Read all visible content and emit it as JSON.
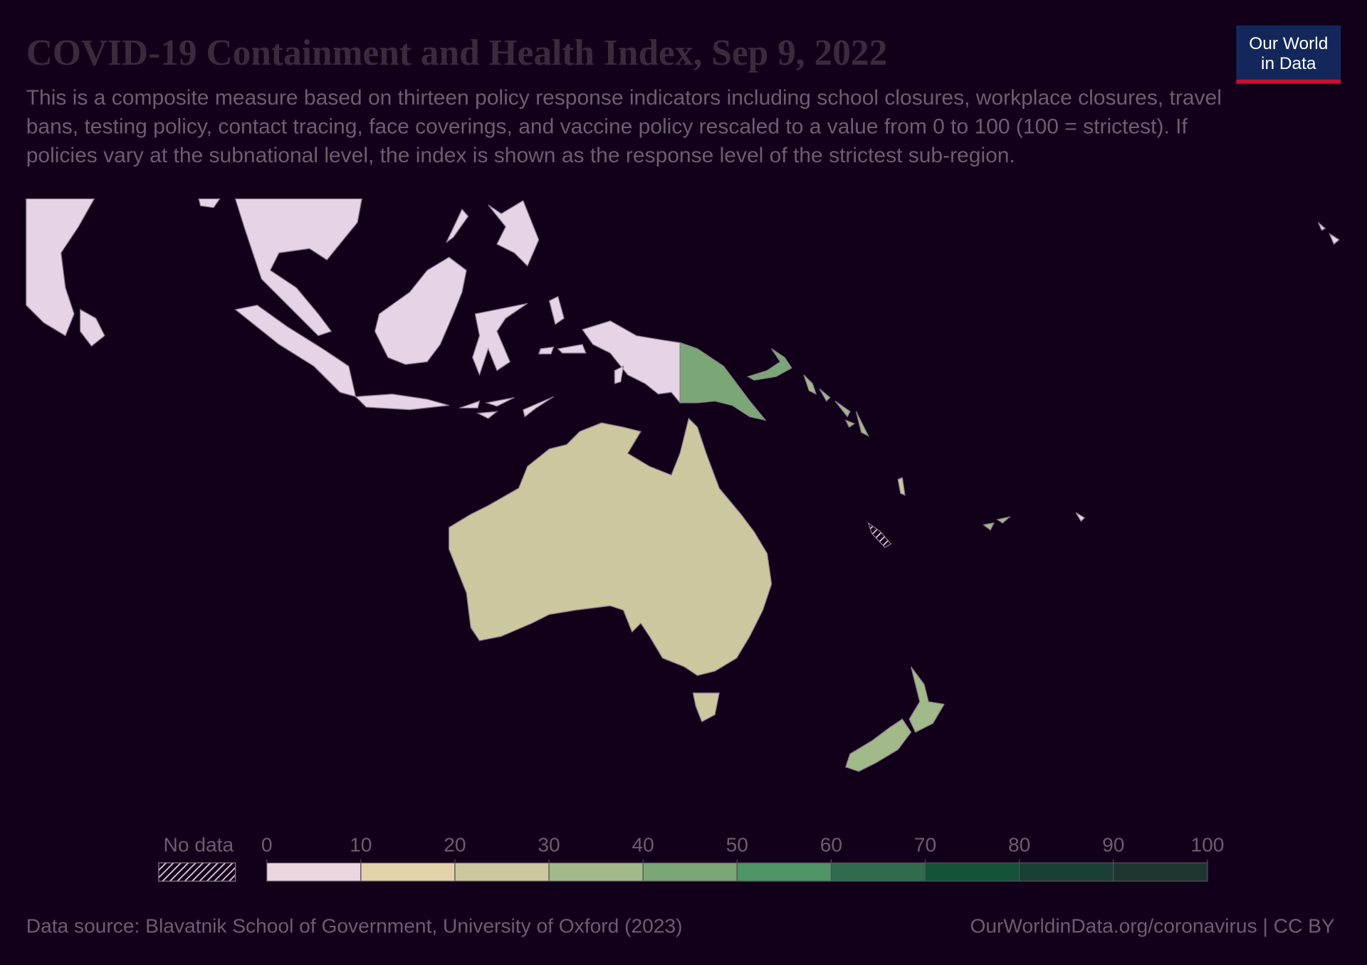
{
  "header": {
    "title": "COVID-19 Containment and Health Index, Sep 9, 2022",
    "subtitle": "This is a composite measure based on thirteen policy response indicators including school closures, workplace closures, travel bans, testing policy, contact tracing, face coverings, and vaccine policy rescaled to a value from 0 to 100 (100 = strictest). If policies vary at the subnational level, the index is shown as the response level of the strictest sub-region.",
    "logo": [
      "Our World",
      "in Data"
    ]
  },
  "legend": {
    "no_data": "No data",
    "ticks": [
      0,
      10,
      20,
      30,
      40,
      50,
      60,
      70,
      80,
      90,
      100
    ],
    "colors": [
      "#ead6df",
      "#e3d3ab",
      "#cbc89f",
      "#a2b98a",
      "#7ba676",
      "#4f9566",
      "#2f6b4c",
      "#145236",
      "#1a4035",
      "#1f3530"
    ]
  },
  "footer": {
    "source": "Data source: Blavatnik School of Government, University of Oxford (2023)",
    "url": "OurWorldinData.org/coronavirus | CC BY"
  }
}
